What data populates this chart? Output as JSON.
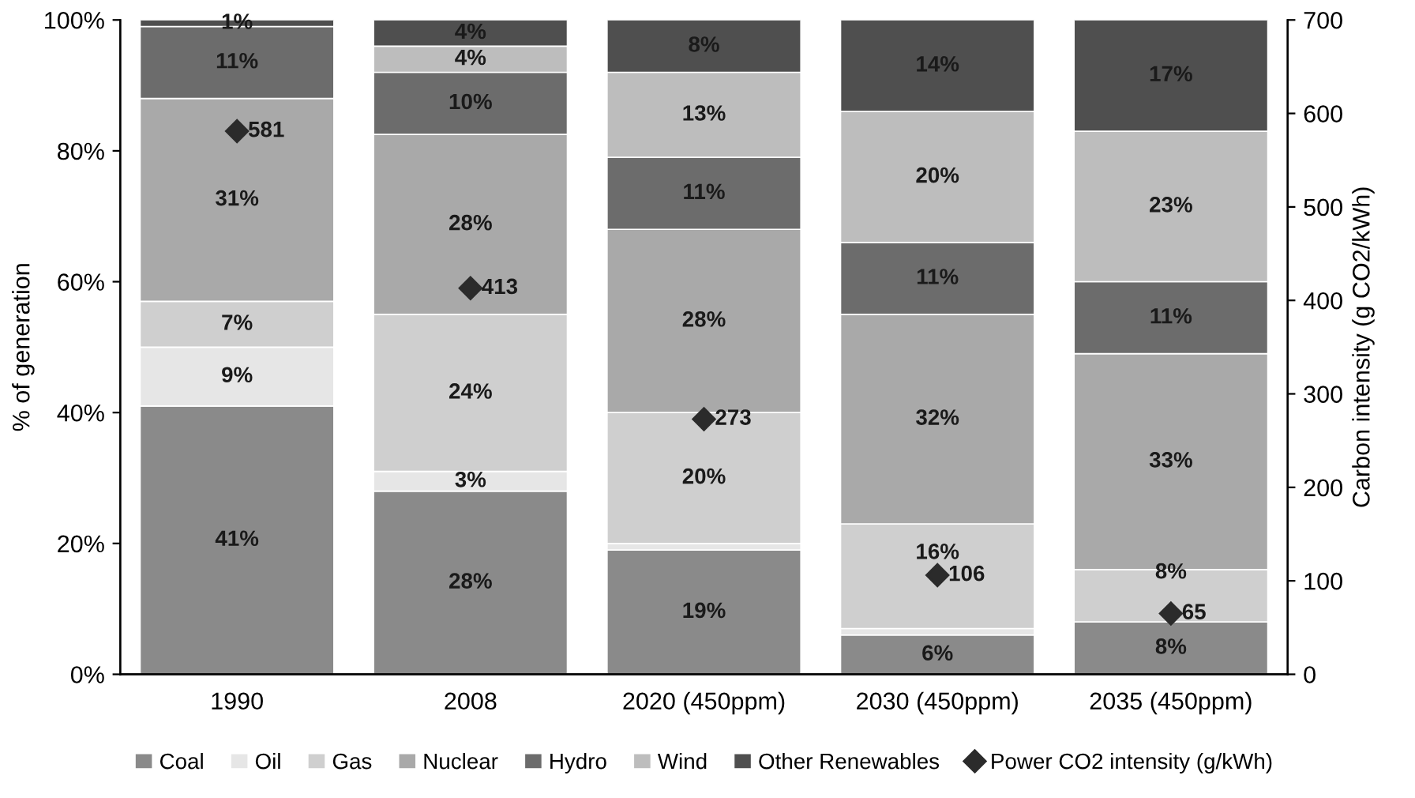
{
  "chart_data": {
    "type": "bar",
    "stacked": true,
    "ylabel": "% of generation",
    "y2label": "Carbon intensity (g CO2/kWh)",
    "categories": [
      "1990",
      "2008",
      "2020 (450ppm)",
      "2030 (450ppm)",
      "2035 (450ppm)"
    ],
    "series": [
      {
        "name": "Coal",
        "color": "#8a8a8a",
        "values": [
          41,
          28,
          19,
          6,
          8
        ],
        "value_labels": [
          "41%",
          "28%",
          "19%",
          "6%",
          "8%"
        ]
      },
      {
        "name": "Oil",
        "color": "#e6e6e6",
        "values": [
          9,
          3,
          1,
          1,
          0
        ],
        "value_labels": [
          "9%",
          "3%",
          null,
          null,
          null
        ]
      },
      {
        "name": "Gas",
        "color": "#cfcfcf",
        "values": [
          7,
          24,
          20,
          16,
          8
        ],
        "value_labels": [
          "7%",
          "24%",
          "20%",
          "16%",
          "8%"
        ]
      },
      {
        "name": "Nuclear",
        "color": "#a9a9a9",
        "values": [
          31,
          27.5,
          28,
          32,
          33
        ],
        "value_labels": [
          "31%",
          "28%",
          "28%",
          "32%",
          "33%"
        ]
      },
      {
        "name": "Hydro",
        "color": "#6c6c6c",
        "values": [
          11,
          9.5,
          11,
          11,
          11
        ],
        "value_labels": [
          "11%",
          "10%",
          "11%",
          "11%",
          "11%"
        ]
      },
      {
        "name": "Wind",
        "color": "#bdbdbd",
        "values": [
          0,
          4,
          13,
          20,
          23
        ],
        "value_labels": [
          null,
          "4%",
          "13%",
          "20%",
          "23%"
        ]
      },
      {
        "name": "Other Renewables",
        "color": "#4f4f4f",
        "values": [
          1,
          4,
          8,
          14,
          17
        ],
        "value_labels": [
          "1%",
          "4%",
          "8%",
          "14%",
          "17%"
        ]
      },
      {
        "name": "Power CO2 intensity (g/kWh)",
        "type": "scatter",
        "axis": "y2",
        "marker": "diamond",
        "color": "#2b2b2b",
        "values": [
          581,
          413,
          273,
          106,
          65
        ],
        "value_labels": [
          "581",
          "413",
          "273",
          "106",
          "65"
        ]
      }
    ],
    "ylim": [
      0,
      100
    ],
    "yticks": [
      {
        "value": 0,
        "label": "0%"
      },
      {
        "value": 20,
        "label": "20%"
      },
      {
        "value": 40,
        "label": "40%"
      },
      {
        "value": 60,
        "label": "60%"
      },
      {
        "value": 80,
        "label": "80%"
      },
      {
        "value": 100,
        "label": "100%"
      }
    ],
    "y2lim": [
      0,
      700
    ],
    "y2ticks": [
      0,
      100,
      200,
      300,
      400,
      500,
      600,
      700
    ],
    "legend": "bottom",
    "grid": false
  }
}
